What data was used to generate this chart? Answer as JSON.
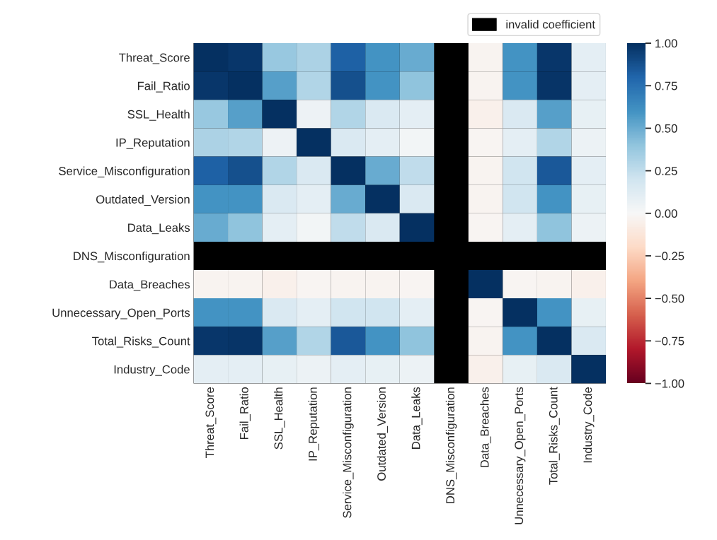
{
  "chart_data": {
    "type": "heatmap",
    "categories": [
      "Threat_Score",
      "Fail_Ratio",
      "SSL_Health",
      "IP_Reputation",
      "Service_Misconfiguration",
      "Outdated_Version",
      "Data_Leaks",
      "DNS_Misconfiguration",
      "Data_Breaches",
      "Unnecessary_Open_Ports",
      "Total_Risks_Count",
      "Industry_Code"
    ],
    "y_categories": [
      "Threat_Score",
      "Fail_Ratio",
      "SSL_Health",
      "IP_Reputation",
      "Service_Misconfiguration",
      "Outdated_Version",
      "Data_Leaks",
      "DNS_Misconfiguration",
      "Data_Breaches",
      "Unnecessary_Open_Ports",
      "Total_Risks_Count",
      "Industry_Code"
    ],
    "cells": [
      [
        1,
        0.97,
        0.38,
        0.32,
        0.82,
        0.6,
        0.5,
        null,
        -0.03,
        0.6,
        0.97,
        0.1
      ],
      [
        0.97,
        1,
        0.55,
        0.3,
        0.88,
        0.6,
        0.4,
        null,
        -0.03,
        0.6,
        0.98,
        0.1
      ],
      [
        0.38,
        0.55,
        1,
        0.05,
        0.3,
        0.15,
        0.1,
        null,
        -0.05,
        0.15,
        0.55,
        0.08
      ],
      [
        0.32,
        0.3,
        0.05,
        1,
        0.15,
        0.1,
        0.03,
        null,
        -0.02,
        0.1,
        0.3,
        0.06
      ],
      [
        0.82,
        0.88,
        0.3,
        0.15,
        1,
        0.5,
        0.25,
        null,
        -0.03,
        0.2,
        0.85,
        0.1
      ],
      [
        0.6,
        0.6,
        0.15,
        0.1,
        0.5,
        1,
        0.15,
        null,
        -0.03,
        0.2,
        0.6,
        0.08
      ],
      [
        0.5,
        0.4,
        0.1,
        0.03,
        0.25,
        0.15,
        1,
        null,
        -0.02,
        0.1,
        0.4,
        0.06
      ],
      [
        null,
        null,
        null,
        null,
        null,
        null,
        null,
        null,
        null,
        null,
        null,
        null
      ],
      [
        -0.03,
        -0.03,
        -0.05,
        -0.02,
        -0.03,
        -0.03,
        -0.02,
        null,
        1,
        -0.02,
        -0.03,
        -0.05
      ],
      [
        0.6,
        0.6,
        0.15,
        0.1,
        0.2,
        0.2,
        0.1,
        null,
        -0.02,
        1,
        0.6,
        0.08
      ],
      [
        0.97,
        0.98,
        0.55,
        0.3,
        0.85,
        0.6,
        0.4,
        null,
        -0.03,
        0.6,
        1,
        0.15
      ],
      [
        0.1,
        0.1,
        0.08,
        0.06,
        0.1,
        0.08,
        0.06,
        null,
        -0.05,
        0.08,
        0.15,
        1
      ]
    ],
    "clim": [
      -1,
      1
    ],
    "cticks": [
      {
        "value": 1,
        "label": "1.00"
      },
      {
        "value": 0.75,
        "label": "0.75"
      },
      {
        "value": 0.5,
        "label": "0.50"
      },
      {
        "value": 0.25,
        "label": "0.25"
      },
      {
        "value": 0,
        "label": "0.00"
      },
      {
        "value": -0.25,
        "label": "−0.25"
      },
      {
        "value": -0.5,
        "label": "−0.50"
      },
      {
        "value": -0.75,
        "label": "−0.75"
      },
      {
        "value": -1,
        "label": "−1.00"
      }
    ],
    "annotations": [
      "invalid coefficient"
    ]
  }
}
